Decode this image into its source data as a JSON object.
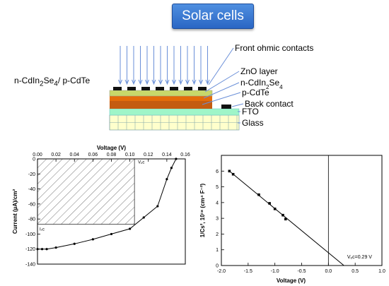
{
  "title": "Solar cells",
  "structure": {
    "label_html": "n-CdIn<sub>2</sub>Se<sub>4</sub>/ p-CdTe",
    "layers": [
      {
        "label": "Front ohmic contacts"
      },
      {
        "label": "ZnO layer"
      },
      {
        "label_html": "n-CdIn<tspan baseline-shift='sub' font-size='8'>2</tspan>Se<tspan baseline-shift='sub' font-size='8'>4</tspan>"
      },
      {
        "label": "p-CdTe"
      },
      {
        "label": "Back contact"
      },
      {
        "label": "FTO"
      },
      {
        "label": "Glass"
      }
    ],
    "colors": {
      "contact": "#111111",
      "zno": "#c8d86a",
      "cdinse": "#e46c0a",
      "cdte": "#c45c10",
      "fto": "#9ff5c8",
      "glass": "#ffffcc",
      "arrow": "#6a8fd8"
    }
  },
  "chart_data": [
    {
      "type": "line",
      "xlabel": "Voltage (V)",
      "ylabel": "Current (µA)/cm²",
      "xlim": [
        0,
        0.16
      ],
      "ylim": [
        -140,
        0
      ],
      "x_ticks": [
        "0.00",
        "0.02",
        "0.04",
        "0.06",
        "0.08",
        "0.10",
        "0.12",
        "0.14",
        "0.16"
      ],
      "y_ticks": [
        "0",
        "-20",
        "-40",
        "-60",
        "-80",
        "-100",
        "-120",
        "-140"
      ],
      "annotations": {
        "voc": "Vₒc",
        "isc": "Iₛc"
      },
      "max_power_rect": {
        "v": 0.105,
        "i": -87
      },
      "series": [
        {
          "x": [
            0.0,
            0.005,
            0.01,
            0.02,
            0.04,
            0.06,
            0.08,
            0.1,
            0.115,
            0.13,
            0.14,
            0.145,
            0.15
          ],
          "y": [
            -120,
            -120,
            -120,
            -118,
            -113,
            -107,
            -100,
            -93,
            -78,
            -63,
            -27,
            -12,
            0
          ]
        }
      ]
    },
    {
      "type": "scatter",
      "xlabel": "Voltage (V)",
      "ylabel": "1/Cs², 10¹⁸ (cm⁴ F⁻²)",
      "xlim": [
        -2.0,
        1.0
      ],
      "ylim": [
        0,
        7
      ],
      "x_ticks": [
        "-2.0",
        "-1.5",
        "-1.0",
        "-0.5",
        "0.0",
        "0.5",
        "1.0"
      ],
      "y_ticks": [
        "0",
        "1",
        "2",
        "3",
        "4",
        "5",
        "6"
      ],
      "annotation": "Vₒc=0.29 V",
      "fit_line": {
        "x": [
          -1.85,
          0.29
        ],
        "y": [
          6.0,
          0
        ]
      },
      "series": [
        {
          "x": [
            -1.85,
            -1.78,
            -1.3,
            -1.1,
            -1.0,
            -0.85,
            -0.8
          ],
          "y": [
            6.0,
            5.8,
            4.5,
            3.95,
            3.6,
            3.2,
            2.95
          ]
        }
      ]
    }
  ]
}
